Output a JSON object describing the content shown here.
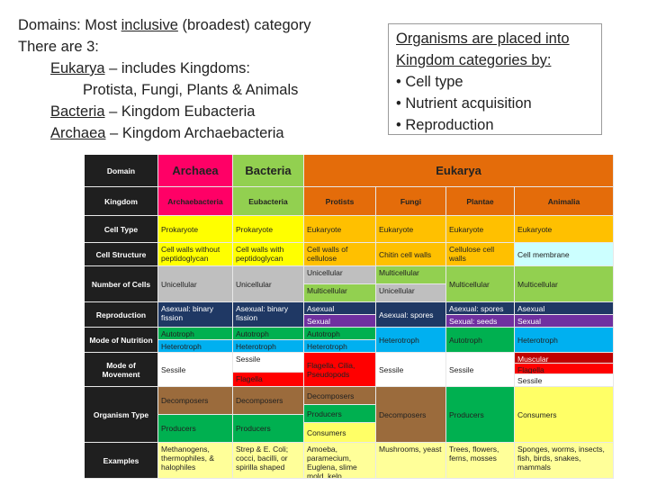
{
  "left": {
    "line1_prefix": "Domains: Most ",
    "line1_word": "inclusive",
    "line1_suffix": " (broadest) category",
    "line2": "There are 3:",
    "eukarya_word": "Eukarya",
    "eukarya_rest": " – includes Kingdoms:",
    "eukarya_kingdoms": "Protista, Fungi, Plants & Animals",
    "bacteria_word": "Bacteria",
    "bacteria_rest": " – Kingdom Eubacteria",
    "archaea_word": "Archaea",
    "archaea_rest": " – Kingdom Archaebacteria"
  },
  "box": {
    "line1": "Organisms are placed into",
    "line2": "Kingdom categories by:",
    "bullets": [
      "• Cell type",
      "• Nutrient acquisition",
      "• Reproduction"
    ]
  },
  "colors": {
    "header_dark": "#1f1f1f",
    "archaea": "#ff0066",
    "bacteria": "#92d050",
    "eukarya": "#e46c0a",
    "yellow": "#ffff00",
    "orange": "#ffc000",
    "light_cyan": "#ccffff",
    "gray": "#bfbfbf",
    "lime": "#92d050",
    "navy": "#1f3864",
    "purple": "#7030a0",
    "cyan": "#00b0f0",
    "green": "#00b050",
    "brown": "#9b6b3c",
    "light_yellow": "#ffff66",
    "red": "#ff0000",
    "dark_red": "#c00000",
    "pale_yellow": "#ffff99"
  },
  "table": {
    "r_domain": "Domain",
    "r_kingdom": "Kingdom",
    "r_celltype": "Cell Type",
    "r_cellstructure": "Cell Structure",
    "r_numcells": "Number of Cells",
    "r_reproduction": "Reproduction",
    "r_nutrition": "Mode of Nutrition",
    "r_movement": "Mode of Movement",
    "r_orgtype": "Organism Type",
    "r_examples": "Examples",
    "d_archaea": "Archaea",
    "d_bacteria": "Bacteria",
    "d_eukarya": "Eukarya",
    "k_archae": "Archaebacteria",
    "k_eubact": "Eubacteria",
    "k_protists": "Protists",
    "k_fungi": "Fungi",
    "k_plantae": "Plantae",
    "k_animalia": "Animalia",
    "prokaryote": "Prokaryote",
    "eukaryote": "Eukaryote",
    "cs_archae": "Cell walls without peptidoglycan",
    "cs_eubact": "Cell walls with peptidoglycan",
    "cs_protists": "Cell walls of cellulose",
    "cs_fungi": "Chitin cell walls",
    "cs_plantae": "Cellulose cell walls",
    "cs_animalia": "Cell membrane",
    "unicellular": "Unicellular",
    "multicellular": "Multicellular",
    "asexual_binary": "Asexual: binary fission",
    "asexual": "Asexual",
    "sexual": "Sexual",
    "asexual_spores": "Asexual: spores",
    "asexual_spores_p": "Asexual: spores",
    "sexual_seeds": "Sexual: seeds",
    "autotroph": "Autotroph",
    "heterotroph": "Heterotroph",
    "sessile": "Sessile",
    "flagella": "Flagella",
    "flagella_cap": "Flagella",
    "flag_cilia": "Flagella, Cilia, Pseudopods",
    "muscular": "Muscular",
    "decomposers": "Decomposers",
    "producers": "Producers",
    "consumers": "Consumers",
    "ex_archae": "Methanogens, thermophiles, & halophiles",
    "ex_eubact": "Strep & E. Coli; cocci, bacilli, or spirilla shaped",
    "ex_protists": "Amoeba, paramecium, Euglena, slime mold, kelp",
    "ex_fungi": "Mushrooms, yeast",
    "ex_plantae": "Trees, flowers, ferns, mosses",
    "ex_animalia": "Sponges, worms, insects, fish, birds, snakes, mammals"
  }
}
